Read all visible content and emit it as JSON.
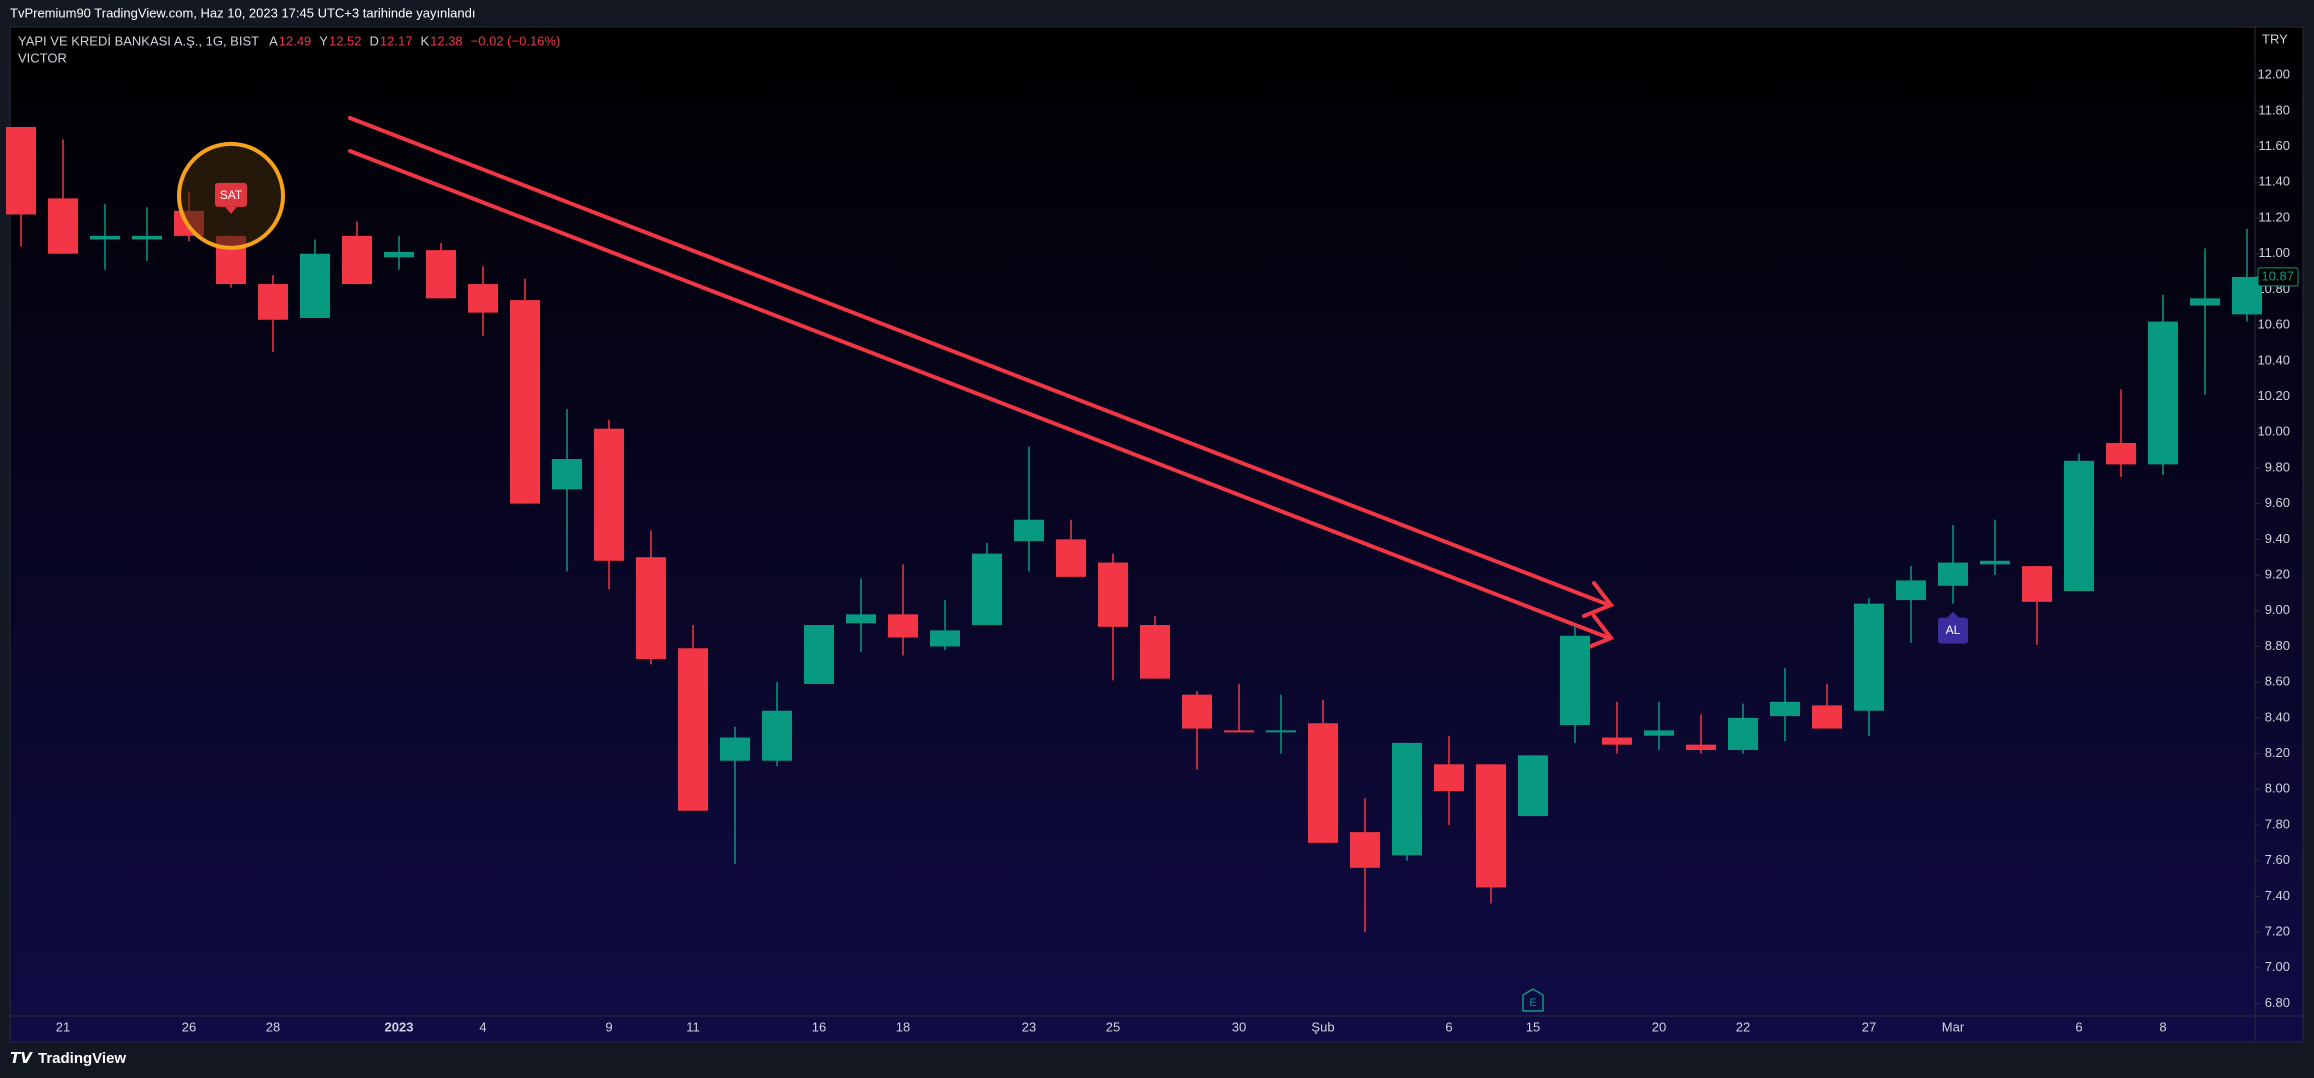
{
  "header": {
    "banner": "TvPremium90 TradingView.com, Haz 10, 2023 17:45 UTC+3 tarihinde yayınlandı",
    "symbol": "YAPI VE KREDİ BANKASI A.Ş., 1G, BIST",
    "stats": [
      {
        "label": "A",
        "value": "12.49"
      },
      {
        "label": "Y",
        "value": "12.52"
      },
      {
        "label": "D",
        "value": "12.17"
      },
      {
        "label": "K",
        "value": "12.38"
      }
    ],
    "change": "−0.02 (−0.16%)",
    "indicator": "VICTOR",
    "currency": "TRY"
  },
  "footer": {
    "brand": "TradingView"
  },
  "chart_data": {
    "type": "candlestick",
    "categories": [
      null,
      "21",
      null,
      null,
      "26",
      null,
      "28",
      null,
      null,
      "2023",
      null,
      "4",
      null,
      null,
      "9",
      null,
      "11",
      null,
      null,
      "16",
      null,
      "18",
      null,
      null,
      "23",
      null,
      "25",
      null,
      null,
      "30",
      null,
      "Şub",
      null,
      null,
      "6",
      null,
      "15",
      null,
      null,
      "20",
      null,
      "22",
      null,
      null,
      "27",
      null,
      "Mar",
      null,
      null,
      "6",
      null,
      "8",
      null,
      null
    ],
    "open": [
      11.71,
      11.31,
      11.08,
      11.08,
      11.24,
      11.1,
      10.83,
      10.64,
      11.1,
      10.98,
      11.02,
      10.83,
      10.74,
      9.68,
      10.02,
      9.3,
      8.79,
      8.16,
      8.16,
      8.59,
      8.93,
      8.98,
      8.8,
      8.92,
      9.39,
      9.4,
      9.27,
      8.92,
      8.53,
      8.33,
      8.32,
      8.37,
      7.76,
      7.63,
      8.14,
      8.14,
      7.85,
      8.36,
      8.29,
      8.3,
      8.25,
      8.22,
      8.41,
      8.47,
      8.44,
      9.06,
      9.14,
      9.26,
      9.25,
      9.11,
      9.94,
      9.82,
      10.71,
      10.66
    ],
    "high": [
      11.71,
      11.64,
      11.28,
      11.26,
      11.35,
      11.1,
      10.88,
      11.08,
      11.18,
      11.1,
      11.06,
      10.93,
      10.86,
      10.13,
      10.07,
      9.45,
      8.92,
      8.35,
      8.6,
      8.92,
      9.18,
      9.26,
      9.06,
      9.38,
      9.92,
      9.51,
      9.32,
      8.97,
      8.55,
      8.59,
      8.53,
      8.5,
      7.95,
      8.26,
      8.3,
      8.14,
      8.19,
      8.92,
      8.49,
      8.49,
      8.42,
      8.48,
      8.68,
      8.59,
      9.07,
      9.25,
      9.48,
      9.51,
      9.25,
      9.88,
      10.24,
      10.77,
      11.03,
      11.14
    ],
    "low": [
      11.04,
      11.0,
      10.91,
      10.96,
      11.07,
      10.81,
      10.45,
      10.64,
      10.83,
      10.91,
      10.75,
      10.54,
      9.6,
      9.22,
      9.12,
      8.7,
      7.88,
      7.58,
      8.13,
      8.59,
      8.77,
      8.75,
      8.78,
      8.92,
      9.22,
      9.19,
      8.61,
      8.62,
      8.11,
      8.32,
      8.2,
      7.7,
      7.2,
      7.6,
      7.8,
      7.36,
      7.85,
      8.26,
      8.2,
      8.22,
      8.2,
      8.2,
      8.27,
      8.34,
      8.3,
      8.82,
      9.04,
      9.2,
      8.81,
      9.11,
      9.75,
      9.76,
      10.21,
      10.62
    ],
    "close": [
      11.22,
      11.0,
      11.1,
      11.1,
      11.1,
      10.83,
      10.63,
      11.0,
      10.83,
      11.01,
      10.75,
      10.67,
      9.6,
      9.85,
      9.28,
      8.73,
      7.88,
      8.29,
      8.44,
      8.92,
      8.98,
      8.85,
      8.89,
      9.32,
      9.51,
      9.19,
      8.91,
      8.62,
      8.34,
      8.32,
      8.33,
      7.7,
      7.56,
      8.26,
      7.99,
      7.45,
      8.19,
      8.86,
      8.25,
      8.33,
      8.22,
      8.4,
      8.49,
      8.34,
      9.04,
      9.17,
      9.27,
      9.28,
      9.05,
      9.84,
      9.82,
      10.62,
      10.75,
      10.87
    ],
    "up_color": "#089981",
    "down_color": "#f23645",
    "last_price": {
      "value": 10.87,
      "label": "10.87"
    },
    "annotations": {
      "sell": {
        "index": 5,
        "label": "SAT"
      },
      "buy": {
        "index": 46,
        "label": "AL"
      },
      "earnings": {
        "index": 36,
        "label": "E"
      }
    },
    "ylim": [
      6.73,
      12.27
    ],
    "yticks": [
      {
        "value": 6.8,
        "label": "6.80"
      },
      {
        "value": 7.0,
        "label": "7.00"
      },
      {
        "value": 7.2,
        "label": "7.20"
      },
      {
        "value": 7.4,
        "label": "7.40"
      },
      {
        "value": 7.6,
        "label": "7.60"
      },
      {
        "value": 7.8,
        "label": "7.80"
      },
      {
        "value": 8.0,
        "label": "8.00"
      },
      {
        "value": 8.2,
        "label": "8.20"
      },
      {
        "value": 8.4,
        "label": "8.40"
      },
      {
        "value": 8.6,
        "label": "8.60"
      },
      {
        "value": 8.8,
        "label": "8.80"
      },
      {
        "value": 9.0,
        "label": "9.00"
      },
      {
        "value": 9.2,
        "label": "9.20"
      },
      {
        "value": 9.4,
        "label": "9.40"
      },
      {
        "value": 9.6,
        "label": "9.60"
      },
      {
        "value": 9.8,
        "label": "9.80"
      },
      {
        "value": 10.0,
        "label": "10.00"
      },
      {
        "value": 10.2,
        "label": "10.20"
      },
      {
        "value": 10.4,
        "label": "10.40"
      },
      {
        "value": 10.6,
        "label": "10.60"
      },
      {
        "value": 10.8,
        "label": "10.80"
      },
      {
        "value": 11.0,
        "label": "11.00"
      },
      {
        "value": 11.2,
        "label": "11.20"
      },
      {
        "value": 11.4,
        "label": "11.40"
      },
      {
        "value": 11.6,
        "label": "11.60"
      },
      {
        "value": 11.8,
        "label": "11.80"
      },
      {
        "value": 12.0,
        "label": "12.00"
      }
    ],
    "grid": false
  }
}
